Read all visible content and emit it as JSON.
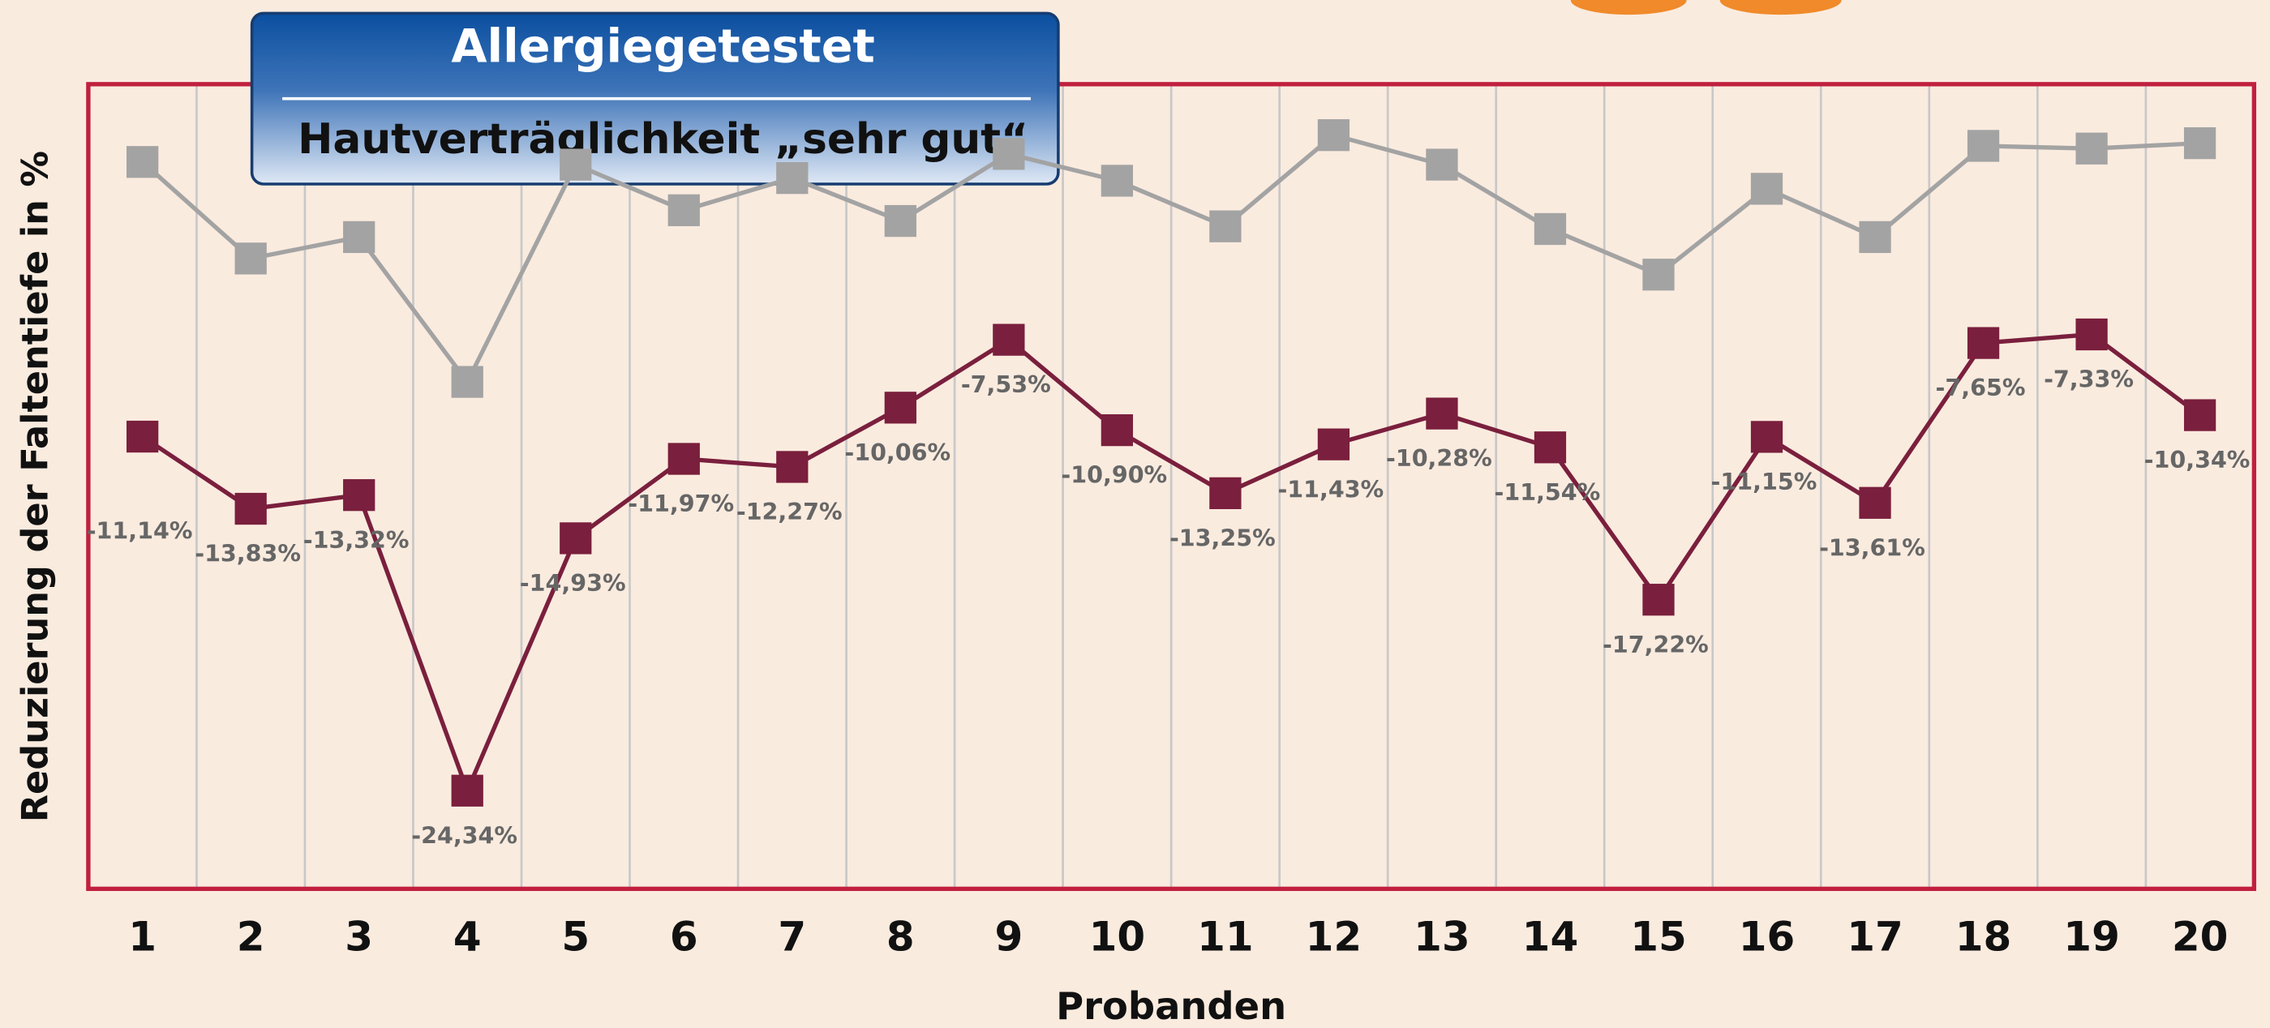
{
  "chart_data": {
    "type": "line",
    "title": "Allergiegetestet",
    "subtitle": "Hautverträglichkeit  „sehr gut“",
    "y_label": "Reduzierung der Faltentiefe in %",
    "x_label": "Probanden",
    "categories": [
      "1",
      "2",
      "3",
      "4",
      "5",
      "6",
      "7",
      "8",
      "9",
      "10",
      "11",
      "12",
      "13",
      "14",
      "15",
      "16",
      "17",
      "18",
      "19",
      "20"
    ],
    "ylim": [
      -28,
      2
    ],
    "grid": true,
    "series": [
      {
        "color": "#a3a3a3",
        "values": [
          -0.9,
          -4.5,
          -3.7,
          -9.1,
          -1.0,
          -2.7,
          -1.5,
          -3.1,
          -0.6,
          -1.6,
          -3.3,
          0.1,
          -1.0,
          -3.4,
          -5.1,
          -1.9,
          -3.7,
          -0.3,
          -0.4,
          -0.2
        ]
      },
      {
        "color": "#7a1f3d",
        "values": [
          -11.14,
          -13.83,
          -13.32,
          -24.34,
          -14.93,
          -11.97,
          -12.27,
          -10.06,
          -7.53,
          -10.9,
          -13.25,
          -11.43,
          -10.28,
          -11.54,
          -17.22,
          -11.15,
          -13.61,
          -7.65,
          -7.33,
          -10.34
        ],
        "value_labels": [
          "-11,14%",
          "-13,83%",
          "-13,32%",
          "-24,34%",
          "-14,93%",
          "-11,97%",
          "-12,27%",
          "-10,06%",
          "-7,53%",
          "-10,90%",
          "-13,25%",
          "-11,43%",
          "-10,28%",
          "-11,54%",
          "-17,22%",
          "-11,15%",
          "-13,61%",
          "-7,65%",
          "-7,33%",
          "-10,34%"
        ]
      }
    ]
  }
}
